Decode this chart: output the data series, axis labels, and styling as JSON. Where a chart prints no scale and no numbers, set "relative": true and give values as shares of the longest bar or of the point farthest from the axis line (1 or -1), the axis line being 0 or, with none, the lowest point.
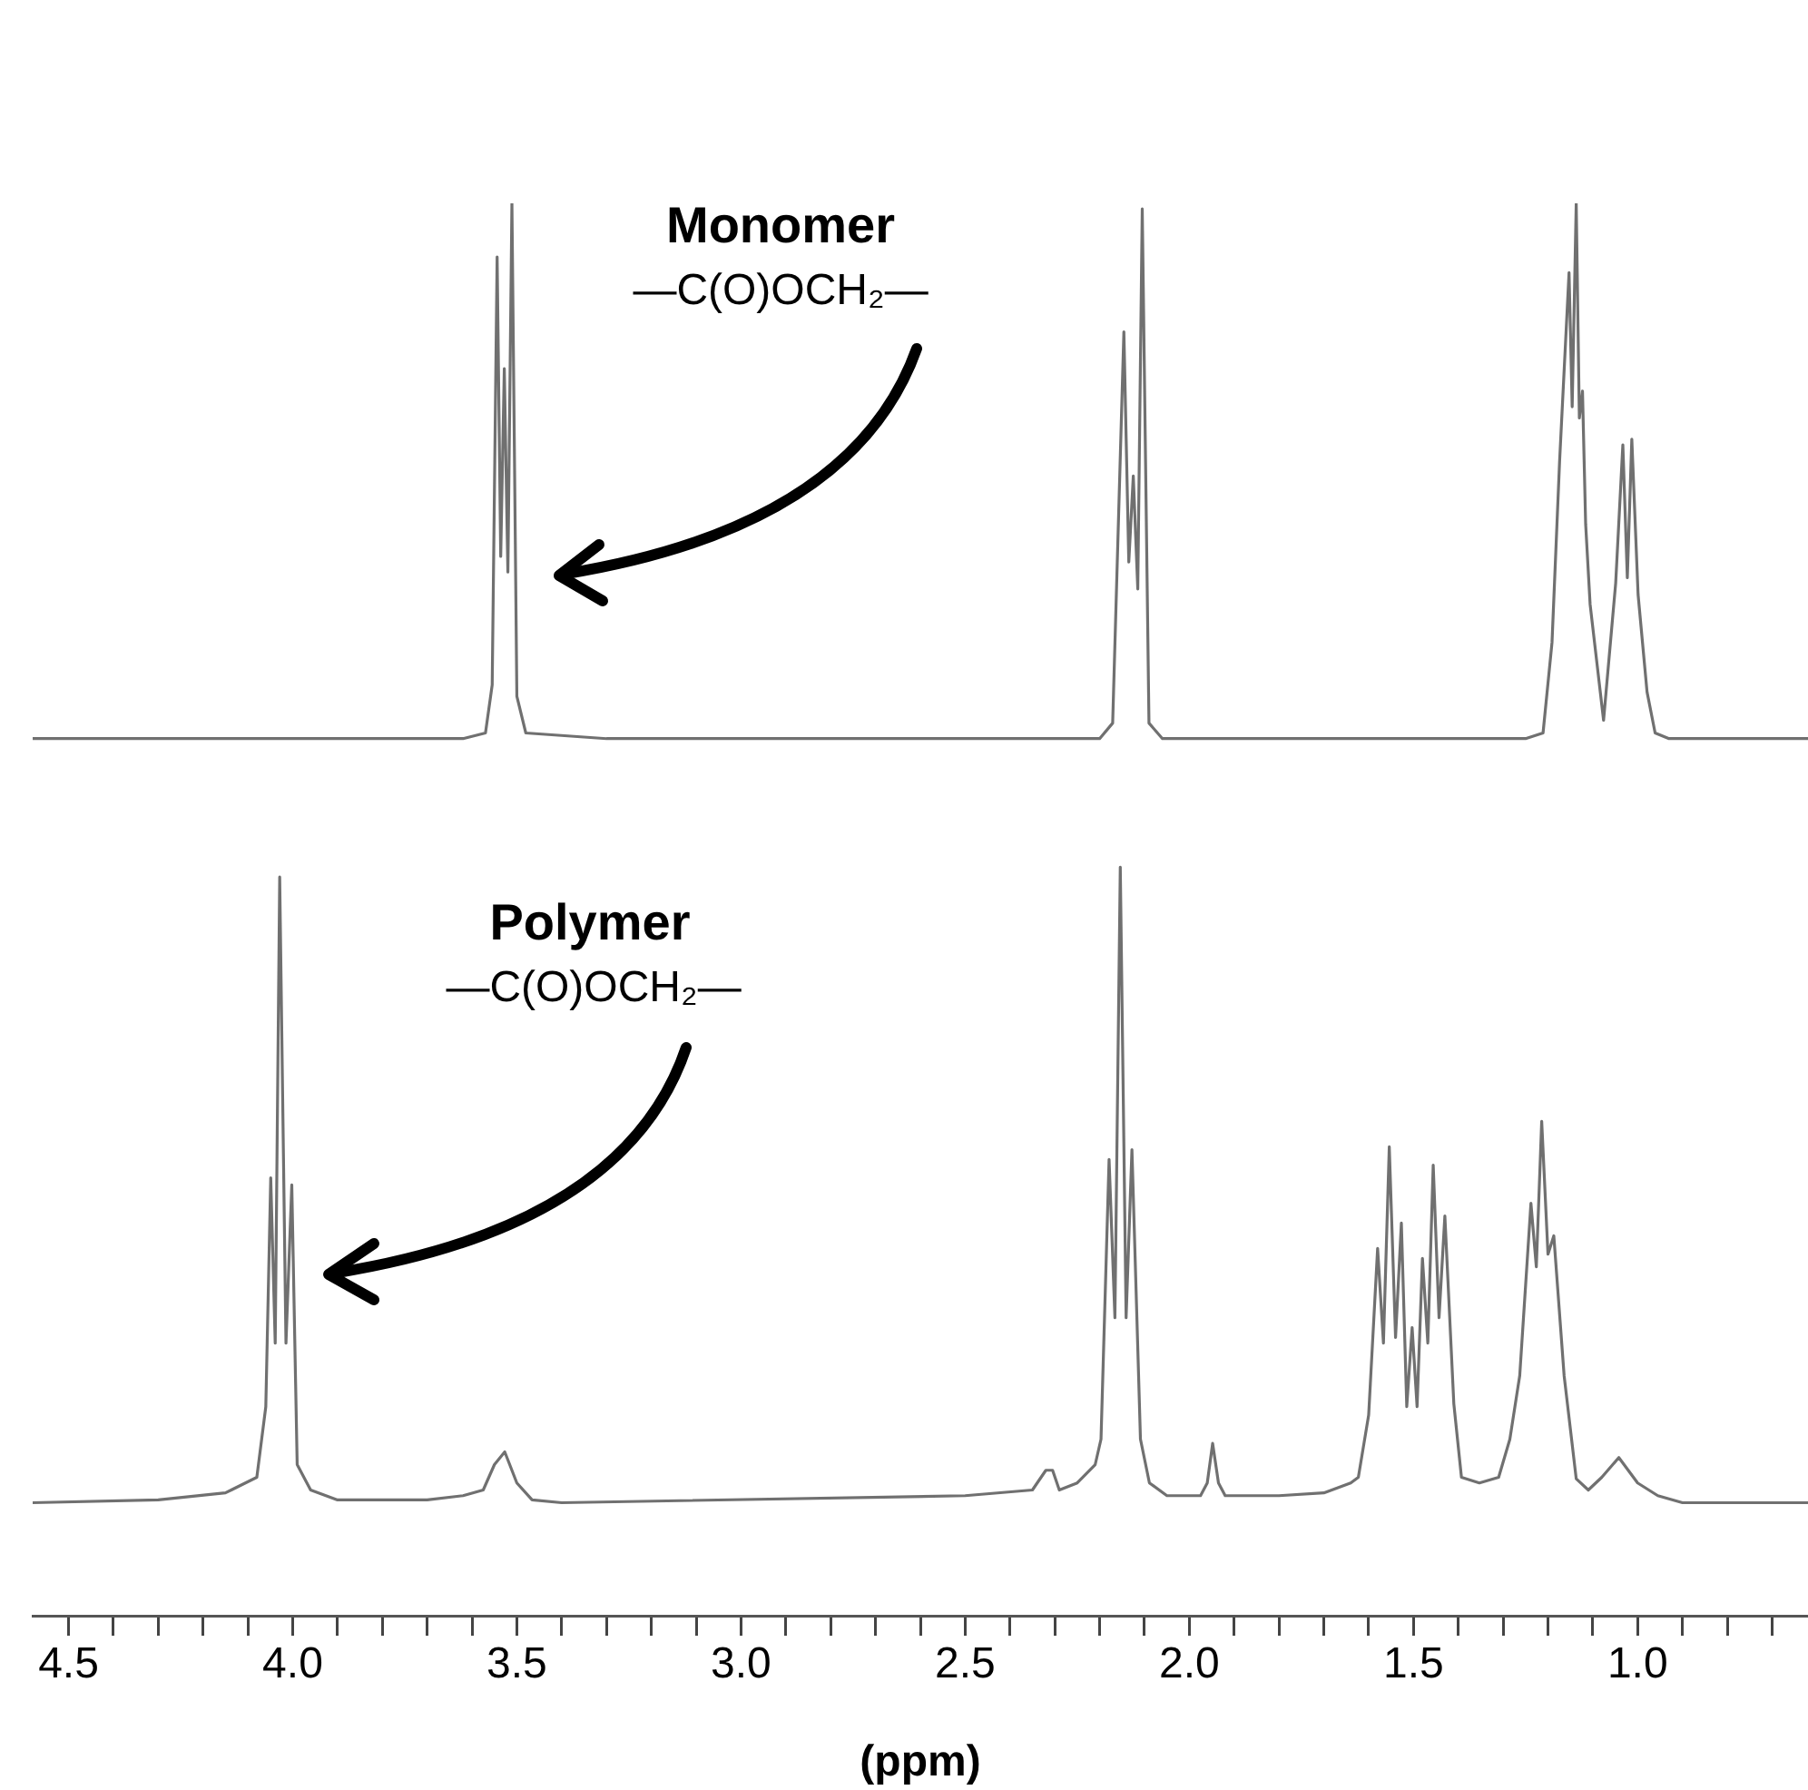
{
  "chart_data": {
    "type": "line",
    "relative": true,
    "xlim": [
      4.58,
      0.62
    ],
    "xlabel": "(ppm)",
    "tick_labels": "x",
    "grid": false,
    "legend": false,
    "marker": "none",
    "xticks": [
      {
        "value": 4.5,
        "label": "4.5"
      },
      {
        "value": 4.4,
        "label": null
      },
      {
        "value": 4.3,
        "label": null
      },
      {
        "value": 4.2,
        "label": null
      },
      {
        "value": 4.1,
        "label": null
      },
      {
        "value": 4,
        "label": "4.0"
      },
      {
        "value": 3.9,
        "label": null
      },
      {
        "value": 3.8,
        "label": null
      },
      {
        "value": 3.7,
        "label": null
      },
      {
        "value": 3.6,
        "label": null
      },
      {
        "value": 3.5,
        "label": "3.5"
      },
      {
        "value": 3.4,
        "label": null
      },
      {
        "value": 3.3,
        "label": null
      },
      {
        "value": 3.2,
        "label": null
      },
      {
        "value": 3.1,
        "label": null
      },
      {
        "value": 3,
        "label": "3.0"
      },
      {
        "value": 2.9,
        "label": null
      },
      {
        "value": 2.8,
        "label": null
      },
      {
        "value": 2.7,
        "label": null
      },
      {
        "value": 2.6,
        "label": null
      },
      {
        "value": 2.5,
        "label": "2.5"
      },
      {
        "value": 2.4,
        "label": null
      },
      {
        "value": 2.3,
        "label": null
      },
      {
        "value": 2.2,
        "label": null
      },
      {
        "value": 2.1,
        "label": null
      },
      {
        "value": 2,
        "label": "2.0"
      },
      {
        "value": 1.9,
        "label": null
      },
      {
        "value": 1.8,
        "label": null
      },
      {
        "value": 1.7,
        "label": null
      },
      {
        "value": 1.6,
        "label": null
      },
      {
        "value": 1.5,
        "label": "1.5"
      },
      {
        "value": 1.4,
        "label": null
      },
      {
        "value": 1.3,
        "label": null
      },
      {
        "value": 1.2,
        "label": null
      },
      {
        "value": 1.1,
        "label": null
      },
      {
        "value": 1,
        "label": "1.0"
      },
      {
        "value": 0.9,
        "label": null
      },
      {
        "value": 0.8,
        "label": null
      },
      {
        "value": 0.7,
        "label": null
      }
    ],
    "annotations": [
      "Monomer",
      "—C(O)OCH₂—",
      "Polymer",
      "—C(O)OCH₂—"
    ],
    "series": [
      {
        "color": "#707070",
        "x": [
          4.58,
          3.62,
          3.57,
          3.555,
          3.544,
          3.536,
          3.528,
          3.52,
          3.511,
          3.5,
          3.48,
          3.3,
          2.2,
          2.171,
          2.146,
          2.135,
          2.125,
          2.115,
          2.105,
          2.09,
          2.06,
          1.25,
          1.211,
          1.191,
          1.174,
          1.153,
          1.146,
          1.137,
          1.13,
          1.123,
          1.116,
          1.106,
          1.076,
          1.049,
          1.033,
          1.023,
          1.013,
          0.999,
          0.979,
          0.961,
          0.93,
          0.62
        ],
        "values": [
          0.621,
          0.621,
          0.625,
          0.659,
          0.962,
          0.75,
          0.883,
          0.739,
          1.0,
          0.651,
          0.625,
          0.621,
          0.621,
          0.632,
          0.909,
          0.746,
          0.807,
          0.727,
          0.996,
          0.632,
          0.621,
          0.621,
          0.625,
          0.689,
          0.818,
          0.951,
          0.856,
          1.0,
          0.848,
          0.867,
          0.773,
          0.716,
          0.634,
          0.731,
          0.829,
          0.735,
          0.833,
          0.723,
          0.654,
          0.625,
          0.621,
          0.621
        ]
      },
      {
        "color": "#707070",
        "x": [
          4.58,
          4.3,
          4.15,
          4.08,
          4.06,
          4.049,
          4.039,
          4.029,
          4.015,
          4.002,
          3.99,
          3.96,
          3.9,
          3.7,
          3.62,
          3.575,
          3.55,
          3.527,
          3.5,
          3.466,
          3.4,
          2.5,
          2.35,
          2.32,
          2.305,
          2.29,
          2.25,
          2.21,
          2.197,
          2.179,
          2.166,
          2.154,
          2.141,
          2.128,
          2.109,
          2.089,
          2.05,
          1.975,
          1.96,
          1.948,
          1.935,
          1.92,
          1.8,
          1.7,
          1.64,
          1.623,
          1.6,
          1.58,
          1.567,
          1.554,
          1.54,
          1.527,
          1.515,
          1.503,
          1.492,
          1.48,
          1.468,
          1.456,
          1.443,
          1.43,
          1.41,
          1.393,
          1.353,
          1.31,
          1.285,
          1.263,
          1.238,
          1.226,
          1.214,
          1.2,
          1.187,
          1.164,
          1.137,
          1.11,
          1.08,
          1.042,
          1.0,
          0.955,
          0.9,
          0.62
        ],
        "values": [
          0.08,
          0.082,
          0.087,
          0.098,
          0.148,
          0.31,
          0.193,
          0.523,
          0.193,
          0.305,
          0.107,
          0.089,
          0.082,
          0.082,
          0.085,
          0.089,
          0.107,
          0.116,
          0.094,
          0.082,
          0.08,
          0.085,
          0.089,
          0.103,
          0.103,
          0.089,
          0.094,
          0.107,
          0.125,
          0.323,
          0.211,
          0.53,
          0.211,
          0.33,
          0.125,
          0.094,
          0.085,
          0.085,
          0.094,
          0.122,
          0.094,
          0.085,
          0.085,
          0.087,
          0.094,
          0.098,
          0.142,
          0.26,
          0.193,
          0.332,
          0.197,
          0.278,
          0.148,
          0.204,
          0.148,
          0.253,
          0.193,
          0.319,
          0.211,
          0.283,
          0.15,
          0.098,
          0.094,
          0.098,
          0.125,
          0.17,
          0.292,
          0.247,
          0.35,
          0.256,
          0.269,
          0.17,
          0.097,
          0.089,
          0.098,
          0.112,
          0.094,
          0.085,
          0.08,
          0.08
        ]
      }
    ]
  }
}
